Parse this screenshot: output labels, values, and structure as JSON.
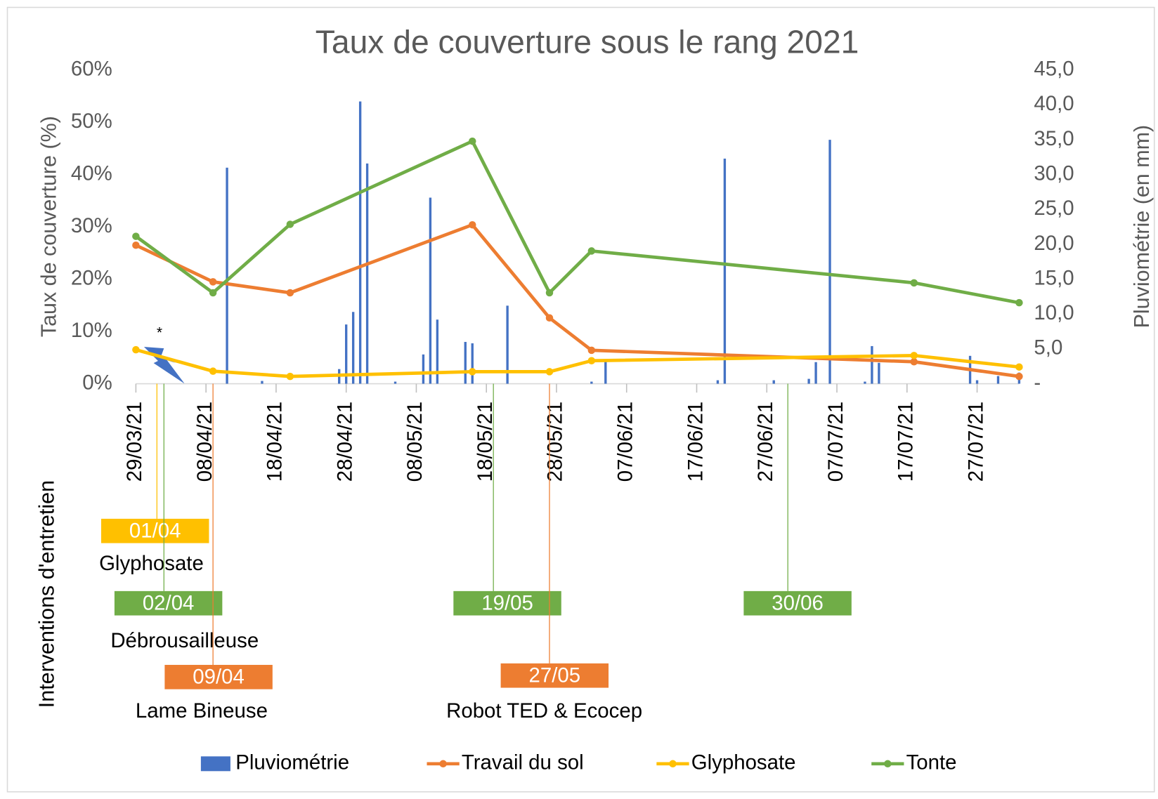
{
  "chart_data": {
    "type": "line",
    "title": "Taux de couverture sous le rang 2021",
    "y_label": "Taux de couverture (%)",
    "y2_label": "Pluviométrie (en mm)",
    "annotation_label": "Interventions d'entretien",
    "note": "*",
    "xlim": [
      "29/03/21",
      "02/08/21"
    ],
    "xticks": [
      "29/03/21",
      "08/04/21",
      "18/04/21",
      "28/04/21",
      "08/05/21",
      "18/05/21",
      "28/05/21",
      "07/06/21",
      "17/06/21",
      "27/06/21",
      "07/07/21",
      "17/07/21",
      "27/07/21"
    ],
    "ylim": [
      0,
      60
    ],
    "yticks": [
      {
        "value": 0,
        "label": "0%"
      },
      {
        "value": 10,
        "label": "10%"
      },
      {
        "value": 20,
        "label": "20%"
      },
      {
        "value": 30,
        "label": "30%"
      },
      {
        "value": 40,
        "label": "40%"
      },
      {
        "value": 50,
        "label": "50%"
      },
      {
        "value": 60,
        "label": "60%"
      }
    ],
    "y2lim": [
      0,
      45
    ],
    "y2ticks": [
      {
        "value": 0,
        "label": "-"
      },
      {
        "value": 5,
        "label": "5,0"
      },
      {
        "value": 10,
        "label": "10,0"
      },
      {
        "value": 15,
        "label": "15,0"
      },
      {
        "value": 20,
        "label": "20,0"
      },
      {
        "value": 25,
        "label": "25,0"
      },
      {
        "value": 30,
        "label": "30,0"
      },
      {
        "value": 35,
        "label": "35,0"
      },
      {
        "value": 40,
        "label": "40,0"
      },
      {
        "value": 45,
        "label": "45,0"
      }
    ],
    "series": [
      {
        "name": "Pluviométrie",
        "type": "bar",
        "axis": "y2",
        "color": "#4472c4",
        "x": [
          "11/04/21",
          "16/04/21",
          "27/04/21",
          "28/04/21",
          "29/04/21",
          "30/04/21",
          "01/05/21",
          "05/05/21",
          "09/05/21",
          "10/05/21",
          "11/05/21",
          "15/05/21",
          "16/05/21",
          "21/05/21",
          "02/06/21",
          "04/06/21",
          "20/06/21",
          "21/06/21",
          "28/06/21",
          "03/07/21",
          "04/07/21",
          "06/07/21",
          "11/07/21",
          "12/07/21",
          "13/07/21",
          "26/07/21",
          "27/07/21",
          "30/07/21",
          "02/08/21"
        ],
        "values": [
          31.0,
          0.4,
          2.1,
          8.5,
          10.3,
          40.5,
          31.6,
          0.3,
          4.2,
          26.7,
          9.2,
          6.0,
          5.8,
          11.2,
          0.3,
          3.2,
          0.5,
          32.3,
          0.5,
          0.7,
          3.1,
          35.0,
          0.3,
          5.4,
          3.0,
          4.0,
          0.5,
          1.1,
          1.6
        ]
      },
      {
        "name": "Travail du sol",
        "type": "line",
        "color": "#ed7d31",
        "x": [
          "29/03/21",
          "09/04/21",
          "20/04/21",
          "16/05/21",
          "27/05/21",
          "02/06/21",
          "18/07/21",
          "02/08/21"
        ],
        "values": [
          26.5,
          19.5,
          17.4,
          30.4,
          12.6,
          6.4,
          4.2,
          1.4
        ]
      },
      {
        "name": "Glyphosate",
        "type": "line",
        "color": "#ffc000",
        "x": [
          "29/03/21",
          "09/04/21",
          "20/04/21",
          "16/05/21",
          "27/05/21",
          "02/06/21",
          "18/07/21",
          "02/08/21"
        ],
        "values": [
          6.5,
          2.4,
          1.4,
          2.3,
          2.3,
          4.4,
          5.4,
          3.2
        ]
      },
      {
        "name": "Tonte",
        "type": "line",
        "color": "#70ad47",
        "x": [
          "29/03/21",
          "09/04/21",
          "20/04/21",
          "16/05/21",
          "27/05/21",
          "02/06/21",
          "18/07/21",
          "02/08/21"
        ],
        "values": [
          28.2,
          17.4,
          30.5,
          46.4,
          17.4,
          25.4,
          19.3,
          15.5
        ]
      }
    ],
    "interventions": [
      {
        "date": "01/04",
        "label": "Glyphosate",
        "color": "#ffc000"
      },
      {
        "date": "02/04",
        "label": "Débrousailleuse",
        "color": "#70ad47"
      },
      {
        "date": "09/04",
        "label": "Lame Bineuse",
        "color": "#ed7d31"
      },
      {
        "date": "19/05",
        "color": "#70ad47"
      },
      {
        "date": "27/05",
        "label": "Robot TED & Ecocep",
        "color": "#ed7d31"
      },
      {
        "date": "30/06",
        "color": "#70ad47"
      }
    ]
  }
}
